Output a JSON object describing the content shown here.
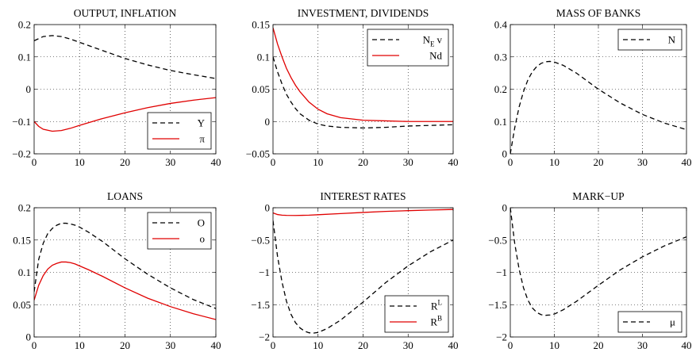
{
  "chart_data": [
    {
      "type": "line",
      "title": "OUTPUT, INFLATION",
      "xlim": [
        0,
        40
      ],
      "ylim": [
        -0.2,
        0.2
      ],
      "xticks": [
        0,
        10,
        20,
        30,
        40
      ],
      "yticks": [
        -0.2,
        -0.1,
        0,
        0.1,
        0.2
      ],
      "ytick_labels": [
        "−0.2",
        "−0.1",
        "0",
        "0.1",
        "0.2"
      ],
      "grid": true,
      "legend_position": "bottom-right",
      "series": [
        {
          "name": "Y",
          "color": "#000000",
          "style": "dashed",
          "x": [
            0,
            2,
            4,
            6,
            8,
            10,
            15,
            20,
            25,
            30,
            35,
            40
          ],
          "y": [
            0.15,
            0.163,
            0.166,
            0.163,
            0.155,
            0.145,
            0.12,
            0.095,
            0.075,
            0.058,
            0.045,
            0.033
          ]
        },
        {
          "name": "π",
          "color": "#e00000",
          "style": "solid",
          "x": [
            0,
            1,
            2,
            4,
            6,
            8,
            10,
            15,
            20,
            25,
            30,
            35,
            40
          ],
          "y": [
            -0.1,
            -0.115,
            -0.124,
            -0.13,
            -0.128,
            -0.121,
            -0.112,
            -0.091,
            -0.073,
            -0.057,
            -0.044,
            -0.034,
            -0.026
          ]
        }
      ]
    },
    {
      "type": "line",
      "title": "INVESTMENT, DIVIDENDS",
      "xlim": [
        0,
        40
      ],
      "ylim": [
        -0.05,
        0.15
      ],
      "xticks": [
        0,
        10,
        20,
        30,
        40
      ],
      "yticks": [
        -0.05,
        0,
        0.05,
        0.1,
        0.15
      ],
      "ytick_labels": [
        "−0.05",
        "0",
        "0.05",
        "0.1",
        "0.15"
      ],
      "grid": true,
      "legend_position": "top-right",
      "series": [
        {
          "name": "N",
          "name_sub": "E",
          "name_suffix": "v",
          "color": "#000000",
          "style": "dashed",
          "x": [
            0,
            1,
            2,
            3,
            4,
            5,
            6,
            8,
            10,
            12,
            15,
            20,
            25,
            30,
            35,
            40
          ],
          "y": [
            0.1,
            0.077,
            0.058,
            0.042,
            0.03,
            0.02,
            0.012,
            0.002,
            -0.004,
            -0.007,
            -0.009,
            -0.01,
            -0.009,
            -0.007,
            -0.006,
            -0.005
          ]
        },
        {
          "name": "Nd",
          "color": "#e00000",
          "style": "solid",
          "x": [
            0,
            1,
            2,
            3,
            4,
            5,
            6,
            8,
            10,
            12,
            15,
            20,
            25,
            30,
            35,
            40
          ],
          "y": [
            0.145,
            0.12,
            0.1,
            0.082,
            0.068,
            0.056,
            0.046,
            0.03,
            0.019,
            0.012,
            0.006,
            0.002,
            0.001,
            0,
            0,
            0
          ]
        }
      ]
    },
    {
      "type": "line",
      "title": "MASS OF BANKS",
      "xlim": [
        0,
        40
      ],
      "ylim": [
        0,
        0.4
      ],
      "xticks": [
        0,
        10,
        20,
        30,
        40
      ],
      "yticks": [
        0,
        0.1,
        0.2,
        0.3,
        0.4
      ],
      "ytick_labels": [
        "0",
        "0.1",
        "0.2",
        "0.3",
        "0.4"
      ],
      "grid": true,
      "legend_position": "top-right",
      "series": [
        {
          "name": "N",
          "color": "#000000",
          "style": "dashed",
          "x": [
            0,
            1,
            2,
            3,
            4,
            5,
            6,
            7,
            8,
            9,
            10,
            12,
            15,
            20,
            25,
            30,
            35,
            40
          ],
          "y": [
            0,
            0.08,
            0.145,
            0.193,
            0.229,
            0.254,
            0.27,
            0.28,
            0.285,
            0.286,
            0.284,
            0.274,
            0.25,
            0.2,
            0.157,
            0.122,
            0.095,
            0.075
          ]
        }
      ]
    },
    {
      "type": "line",
      "title": "LOANS",
      "xlim": [
        0,
        40
      ],
      "ylim": [
        0,
        0.2
      ],
      "xticks": [
        0,
        10,
        20,
        30,
        40
      ],
      "yticks": [
        0,
        0.05,
        0.1,
        0.15,
        0.2
      ],
      "ytick_labels": [
        "0",
        "0.05",
        "0.1",
        "0.15",
        "0.2"
      ],
      "grid": true,
      "legend_position": "top-right",
      "series": [
        {
          "name": "O",
          "color": "#000000",
          "style": "dashed",
          "x": [
            0,
            1,
            2,
            3,
            4,
            5,
            6,
            7,
            8,
            9,
            10,
            12,
            15,
            20,
            25,
            30,
            35,
            40
          ],
          "y": [
            0.07,
            0.12,
            0.145,
            0.16,
            0.168,
            0.173,
            0.176,
            0.176,
            0.175,
            0.173,
            0.17,
            0.162,
            0.148,
            0.121,
            0.097,
            0.076,
            0.058,
            0.044
          ]
        },
        {
          "name": "o",
          "color": "#e00000",
          "style": "solid",
          "x": [
            0,
            1,
            2,
            3,
            4,
            5,
            6,
            7,
            8,
            9,
            10,
            12,
            15,
            20,
            25,
            30,
            35,
            40
          ],
          "y": [
            0.057,
            0.08,
            0.095,
            0.105,
            0.111,
            0.114,
            0.116,
            0.116,
            0.115,
            0.113,
            0.11,
            0.104,
            0.094,
            0.076,
            0.06,
            0.047,
            0.036,
            0.027
          ]
        }
      ]
    },
    {
      "type": "line",
      "title": "INTEREST RATES",
      "xlim": [
        0,
        40
      ],
      "ylim": [
        -2,
        0
      ],
      "xticks": [
        0,
        10,
        20,
        30,
        40
      ],
      "yticks": [
        -2,
        -1.5,
        -1,
        -0.5,
        0
      ],
      "ytick_labels": [
        "−2",
        "−1.5",
        "−1",
        "−0.5",
        "0"
      ],
      "grid": true,
      "legend_position": "bottom-right",
      "series": [
        {
          "name": "R",
          "name_sup": "L",
          "color": "#000000",
          "style": "dashed",
          "x": [
            0,
            1,
            2,
            3,
            4,
            5,
            6,
            7,
            8,
            9,
            10,
            12,
            15,
            20,
            25,
            30,
            35,
            40
          ],
          "y": [
            -0.2,
            -0.75,
            -1.15,
            -1.45,
            -1.65,
            -1.78,
            -1.86,
            -1.91,
            -1.935,
            -1.94,
            -1.93,
            -1.87,
            -1.74,
            -1.46,
            -1.16,
            -0.9,
            -0.68,
            -0.5
          ]
        },
        {
          "name": "R",
          "name_sup": "B",
          "color": "#e00000",
          "style": "solid",
          "x": [
            0,
            1,
            2,
            3,
            5,
            8,
            10,
            15,
            20,
            25,
            30,
            35,
            40
          ],
          "y": [
            -0.08,
            -0.105,
            -0.115,
            -0.118,
            -0.12,
            -0.115,
            -0.108,
            -0.09,
            -0.073,
            -0.057,
            -0.045,
            -0.035,
            -0.027
          ]
        }
      ]
    },
    {
      "type": "line",
      "title": "MARK−UP",
      "xlim": [
        0,
        40
      ],
      "ylim": [
        -2,
        0
      ],
      "xticks": [
        0,
        10,
        20,
        30,
        40
      ],
      "yticks": [
        -2,
        -1.5,
        -1,
        -0.5,
        0
      ],
      "ytick_labels": [
        "−2",
        "−1.5",
        "−1",
        "−0.5",
        "0"
      ],
      "grid": true,
      "legend_position": "bottom-right",
      "series": [
        {
          "name": "μ",
          "color": "#000000",
          "style": "dashed",
          "x": [
            0,
            1,
            2,
            3,
            4,
            5,
            6,
            7,
            8,
            9,
            10,
            12,
            15,
            20,
            25,
            30,
            35,
            40
          ],
          "y": [
            0,
            -0.55,
            -0.95,
            -1.24,
            -1.43,
            -1.55,
            -1.62,
            -1.655,
            -1.665,
            -1.66,
            -1.645,
            -1.58,
            -1.45,
            -1.2,
            -0.96,
            -0.76,
            -0.59,
            -0.45
          ]
        }
      ]
    }
  ]
}
